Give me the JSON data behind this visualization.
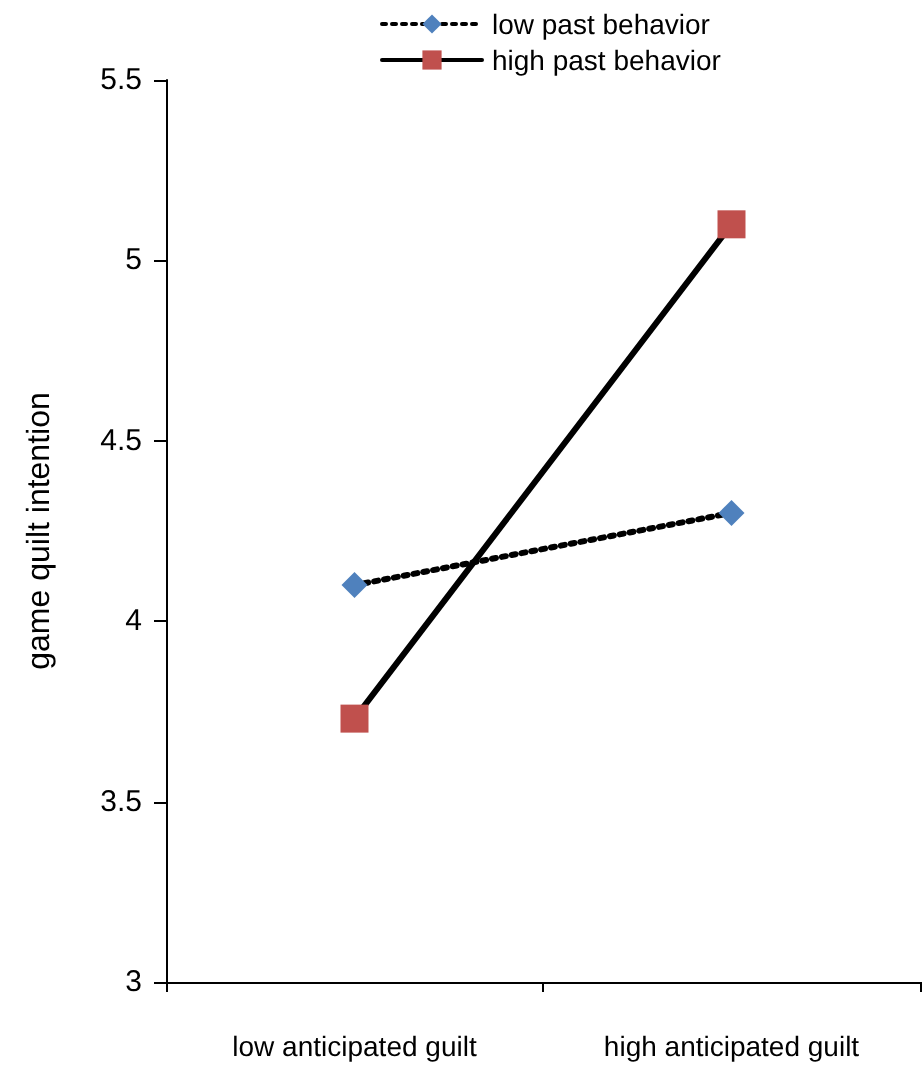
{
  "chart_data": {
    "type": "line",
    "ylabel": "game quilt intention",
    "categories": [
      "low anticipated guilt",
      "high anticipated guilt"
    ],
    "series": [
      {
        "name": "low past behavior",
        "color": "#4f81bd",
        "values": [
          4.1,
          4.3
        ],
        "marker": "diamond",
        "line_style": "dotted"
      },
      {
        "name": "high past behavior",
        "color": "#c0504d",
        "values": [
          3.73,
          5.1
        ],
        "marker": "square",
        "line_style": "solid"
      }
    ],
    "ylim": [
      3,
      5.5
    ],
    "yticks": [
      3,
      3.5,
      4,
      4.5,
      5,
      5.5
    ],
    "grid": false,
    "legend": "top"
  }
}
